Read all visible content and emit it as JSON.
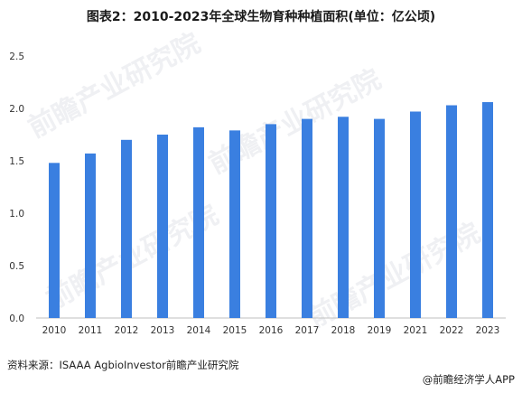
{
  "title": "图表2：2010-2023年全球生物育种种植面积(单位：亿公顷)",
  "source": "资料来源：ISAAA AgbioInvestor前瞻产业研究院",
  "credit": "@前瞻经济学人APP",
  "watermark": "前瞻产业研究院",
  "colors": {
    "bar": "#3a7fe0",
    "axis": "#bfbfbf"
  },
  "chart_data": {
    "type": "bar",
    "categories": [
      "2010",
      "2011",
      "2012",
      "2013",
      "2014",
      "2015",
      "2016",
      "2017",
      "2018",
      "2019",
      "2021",
      "2022",
      "2023"
    ],
    "values": [
      1.48,
      1.57,
      1.7,
      1.75,
      1.82,
      1.79,
      1.85,
      1.9,
      1.92,
      1.9,
      1.97,
      2.03,
      2.06
    ],
    "ylim": [
      0,
      2.5
    ],
    "yticks": [
      "0.0",
      "0.5",
      "1.0",
      "1.5",
      "2.0",
      "2.5"
    ],
    "xlabel": "",
    "ylabel": "",
    "grid": false
  }
}
